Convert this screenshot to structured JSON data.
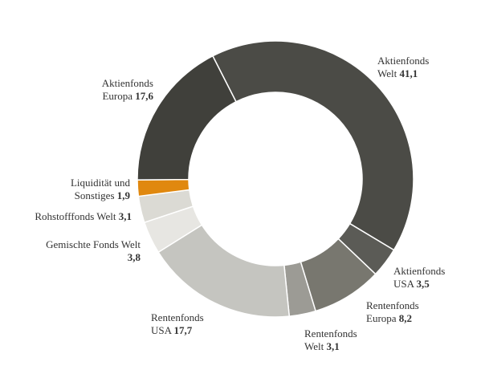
{
  "chart_data": {
    "type": "donut",
    "categories": [
      "Aktienfonds Welt",
      "Aktienfonds USA",
      "Rentenfonds Europa",
      "Rentenfonds Welt",
      "Rentenfonds USA",
      "Gemischte Fonds Welt",
      "Rohstofffonds Welt",
      "Liquidität und Sonstiges",
      "Aktienfonds Europa"
    ],
    "values": [
      41.1,
      3.5,
      8.2,
      3.1,
      17.7,
      3.8,
      3.1,
      1.9,
      17.6
    ],
    "value_labels": [
      "41,1",
      "3,5",
      "8,2",
      "3,1",
      "17,7",
      "3,8",
      "3,1",
      "1,9",
      "17,6"
    ],
    "colors": [
      "#4b4b46",
      "#5b5b56",
      "#78776f",
      "#9c9b95",
      "#c5c5c0",
      "#e7e6e2",
      "#dbdad4",
      "#e0880f",
      "#40403b"
    ]
  }
}
